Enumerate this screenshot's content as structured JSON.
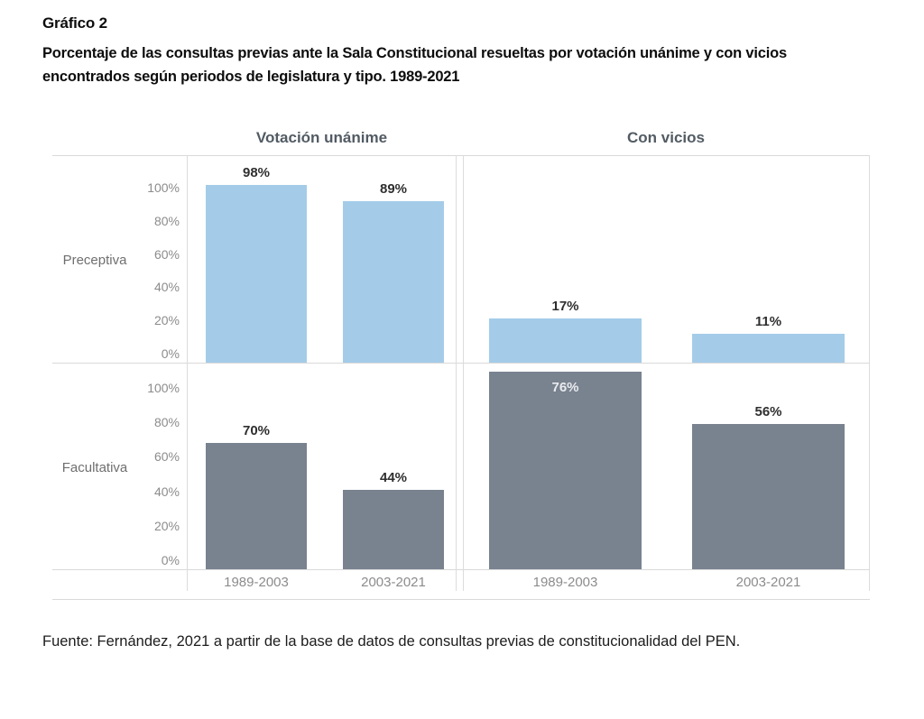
{
  "title": "Gráfico 2",
  "subtitle": "Porcentaje de las consultas previas ante la Sala Constitucional resueltas por votación unánime y con vicios encontrados según periodos de legislatura y tipo. 1989-2021",
  "source_note": "Fuente: Fernández, 2021 a partir de la base de datos de consultas previas de constitucionalidad del PEN.",
  "chart_data": {
    "type": "bar",
    "title": "Gráfico 2",
    "facet_columns": [
      "Votación unánime",
      "Con vicios"
    ],
    "facet_rows": [
      "Preceptiva",
      "Facultativa"
    ],
    "categories": [
      "1989-2003",
      "2003-2021"
    ],
    "y_ticks": [
      "100%",
      "80%",
      "60%",
      "40%",
      "20%",
      "0%"
    ],
    "ylim": [
      0,
      100
    ],
    "grid": false,
    "legend": "none",
    "colors": {
      "preceptiva_bar": "#a4cce9",
      "facultativa_bar": "#79828f",
      "value_label": "#2f2f2f",
      "value_label_inside": "#e9ebee",
      "axis_text": "#8c8c8c",
      "facet_header_text": "#525b63",
      "frame_line": "#d9d9d9"
    },
    "panels": [
      {
        "row": "Preceptiva",
        "column": "Votación unánime",
        "values": [
          98,
          89
        ],
        "labels": [
          "98%",
          "89%"
        ],
        "color": "#a4cce9",
        "label_inside": [
          false,
          false
        ]
      },
      {
        "row": "Preceptiva",
        "column": "Con vicios",
        "values": [
          17,
          11
        ],
        "labels": [
          "17%",
          "11%"
        ],
        "color": "#a4cce9",
        "label_inside": [
          false,
          false
        ]
      },
      {
        "row": "Facultativa",
        "column": "Votación unánime",
        "values": [
          70,
          44
        ],
        "labels": [
          "70%",
          "44%"
        ],
        "color": "#79828f",
        "label_inside": [
          false,
          false
        ]
      },
      {
        "row": "Facultativa",
        "column": "Con vicios",
        "values": [
          76,
          56
        ],
        "labels": [
          "76%",
          "56%"
        ],
        "color": "#79828f",
        "label_inside": [
          true,
          false
        ]
      }
    ]
  }
}
